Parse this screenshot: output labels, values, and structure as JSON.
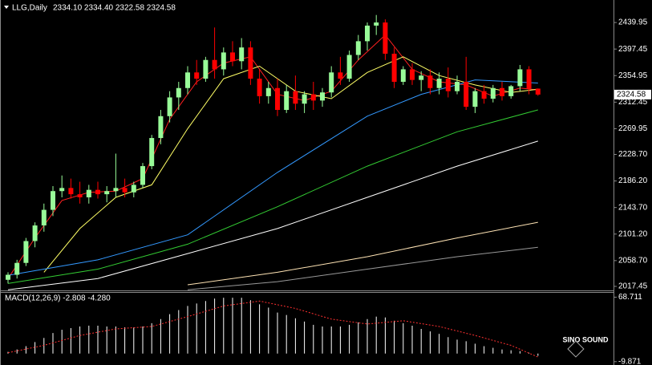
{
  "chart_data": [
    {
      "type": "candlestick",
      "title": "LLG,Daily",
      "info": "2334.10 2334.40 2322.58 2324.58",
      "ylim": [
        2011,
        2476
      ],
      "yticks": [
        2439.95,
        2397.45,
        2354.95,
        2312.45,
        2269.95,
        {
          "value": 2228.7,
          "label": "2228.70"
        },
        {
          "value": 2186.2,
          "label": "2186.20"
        },
        {
          "value": 2143.7,
          "label": "2143.70"
        },
        {
          "value": 2101.2,
          "label": "2101.20"
        },
        {
          "value": 2058.7,
          "label": "2058.70"
        },
        2017.45
      ],
      "last_price": {
        "value": 2324.58,
        "label": "2324.58"
      },
      "up_color": "#98fb98",
      "down_color": "#ff0000",
      "open": [
        2028,
        2036,
        2055,
        2090,
        2115,
        2140,
        2170,
        2175,
        2165,
        2160,
        2172,
        2165,
        2170,
        2175,
        2168,
        2180,
        2210,
        2255,
        2290,
        2320,
        2335,
        2360,
        2350,
        2380,
        2365,
        2392,
        2378,
        2400,
        2350,
        2322,
        2335,
        2300,
        2330,
        2310,
        2325,
        2315,
        2328,
        2360,
        2350,
        2388,
        2410,
        2435,
        2440,
        2390,
        2345,
        2365,
        2348,
        2355,
        2335,
        2350,
        2330,
        2345,
        2305,
        2330,
        2318,
        2335,
        2322,
        2338,
        2365,
        2334.1
      ],
      "high": [
        2040,
        2060,
        2095,
        2120,
        2150,
        2178,
        2195,
        2190,
        2185,
        2180,
        2185,
        2178,
        2230,
        2190,
        2185,
        2215,
        2260,
        2300,
        2330,
        2345,
        2370,
        2380,
        2385,
        2432,
        2400,
        2410,
        2415,
        2410,
        2365,
        2345,
        2350,
        2340,
        2355,
        2330,
        2345,
        2335,
        2370,
        2385,
        2395,
        2420,
        2440,
        2452,
        2445,
        2400,
        2370,
        2375,
        2362,
        2365,
        2360,
        2368,
        2355,
        2385,
        2335,
        2340,
        2340,
        2345,
        2340,
        2372,
        2370,
        2334.4
      ],
      "low": [
        2022,
        2030,
        2050,
        2080,
        2105,
        2130,
        2160,
        2158,
        2150,
        2150,
        2158,
        2152,
        2160,
        2160,
        2160,
        2175,
        2205,
        2245,
        2280,
        2300,
        2325,
        2340,
        2345,
        2350,
        2355,
        2370,
        2365,
        2340,
        2310,
        2310,
        2290,
        2295,
        2300,
        2295,
        2300,
        2305,
        2320,
        2340,
        2345,
        2380,
        2395,
        2420,
        2380,
        2335,
        2340,
        2340,
        2330,
        2325,
        2325,
        2320,
        2325,
        2300,
        2295,
        2310,
        2312,
        2315,
        2318,
        2330,
        2325,
        2322.58
      ],
      "close": [
        2036,
        2055,
        2090,
        2115,
        2140,
        2170,
        2175,
        2165,
        2160,
        2172,
        2165,
        2170,
        2175,
        2168,
        2180,
        2210,
        2255,
        2290,
        2320,
        2335,
        2360,
        2350,
        2380,
        2365,
        2392,
        2378,
        2400,
        2350,
        2322,
        2335,
        2300,
        2330,
        2310,
        2325,
        2315,
        2328,
        2360,
        2350,
        2388,
        2410,
        2435,
        2440,
        2390,
        2345,
        2365,
        2348,
        2355,
        2335,
        2350,
        2330,
        2345,
        2305,
        2330,
        2318,
        2335,
        2322,
        2338,
        2365,
        2334,
        2324.58
      ],
      "lines": [
        {
          "color": "#ff2020",
          "x": [
            0,
            3,
            6,
            9,
            12,
            15,
            18,
            21,
            24,
            27,
            30,
            33,
            36,
            39,
            42,
            45,
            48,
            51,
            54,
            57,
            59
          ],
          "values": [
            2030,
            2095,
            2155,
            2168,
            2170,
            2190,
            2285,
            2345,
            2375,
            2385,
            2325,
            2315,
            2330,
            2380,
            2420,
            2365,
            2345,
            2340,
            2322,
            2335,
            2332
          ]
        },
        {
          "color": "#ffff66",
          "x": [
            4,
            8,
            12,
            16,
            20,
            24,
            28,
            32,
            36,
            40,
            44,
            48,
            52,
            56,
            59
          ],
          "values": [
            2040,
            2110,
            2160,
            2180,
            2270,
            2350,
            2370,
            2330,
            2318,
            2360,
            2385,
            2355,
            2340,
            2328,
            2333
          ]
        },
        {
          "color": "#3399ff",
          "x": [
            0,
            10,
            20,
            30,
            40,
            46,
            52,
            59
          ],
          "values": [
            2035,
            2060,
            2100,
            2200,
            2290,
            2325,
            2348,
            2343
          ]
        },
        {
          "color": "#33cc33",
          "x": [
            0,
            10,
            20,
            30,
            40,
            50,
            59
          ],
          "values": [
            2022,
            2045,
            2085,
            2145,
            2210,
            2265,
            2300
          ]
        },
        {
          "color": "#ffffff",
          "x": [
            0,
            10,
            20,
            30,
            40,
            50,
            59
          ],
          "values": [
            2012,
            2030,
            2070,
            2110,
            2160,
            2210,
            2250
          ]
        },
        {
          "color": "#ffe4b5",
          "x": [
            20,
            30,
            40,
            50,
            59
          ],
          "values": [
            2020,
            2040,
            2065,
            2095,
            2120
          ]
        },
        {
          "color": "#999999",
          "x": [
            20,
            30,
            40,
            50,
            59
          ],
          "values": [
            2012,
            2025,
            2045,
            2065,
            2080
          ]
        }
      ]
    },
    {
      "type": "macd",
      "title": "MACD(12,26,9) -2.808 -4.280",
      "ylim": [
        -12,
        75
      ],
      "yticks": [
        68.711,
        -9.871
      ],
      "color": "#ffffff",
      "signal_color": "#ff3030",
      "values": [
        2,
        5,
        9,
        14,
        19,
        25,
        29,
        31,
        33,
        34,
        34,
        33,
        33,
        32,
        32,
        33,
        37,
        42,
        48,
        53,
        58,
        61,
        64,
        67,
        68,
        68,
        68,
        65,
        60,
        56,
        50,
        47,
        43,
        39,
        35,
        33,
        33,
        33,
        35,
        38,
        42,
        45,
        44,
        40,
        37,
        34,
        30,
        27,
        24,
        20,
        17,
        15,
        12,
        9,
        7,
        5,
        4,
        3,
        1,
        -2.808
      ],
      "signal_x": [
        0,
        4,
        8,
        12,
        16,
        20,
        24,
        28,
        32,
        36,
        40,
        44,
        48,
        52,
        56,
        59
      ],
      "signal": [
        1,
        10,
        22,
        30,
        33,
        45,
        58,
        64,
        55,
        42,
        36,
        40,
        33,
        22,
        10,
        -4.28
      ],
      "watermark": "SINO SOUND"
    }
  ]
}
